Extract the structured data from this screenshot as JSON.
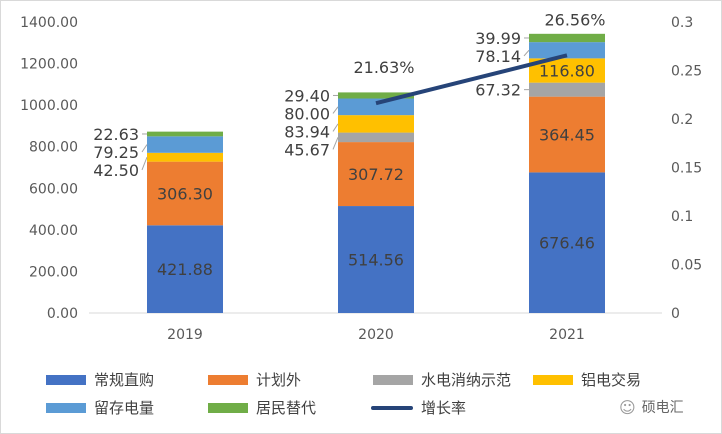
{
  "chart_data": {
    "type": "bar",
    "stacked": true,
    "categories": [
      "2019",
      "2020",
      "2021"
    ],
    "series": [
      {
        "name": "常规直购",
        "color": "#4472C4",
        "values": [
          421.88,
          514.56,
          676.46
        ]
      },
      {
        "name": "计划外",
        "color": "#ED7D31",
        "values": [
          306.3,
          307.72,
          364.45
        ]
      },
      {
        "name": "水电消纳示范",
        "color": "#A5A5A5",
        "values": [
          null,
          45.67,
          67.32
        ]
      },
      {
        "name": "铝电交易",
        "color": "#FFC000",
        "values": [
          42.5,
          83.94,
          116.8
        ]
      },
      {
        "name": "留存电量",
        "color": "#5B9BD5",
        "values": [
          79.25,
          80.0,
          78.14
        ]
      },
      {
        "name": "居民替代",
        "color": "#70AD47",
        "values": [
          22.63,
          29.4,
          39.99
        ]
      }
    ],
    "line_series": {
      "name": "增长率",
      "color": "#264478",
      "axis": "secondary",
      "values": [
        null,
        0.2163,
        0.2656
      ],
      "labels": [
        null,
        "21.63%",
        "26.56%"
      ]
    },
    "ylim": [
      0,
      1400
    ],
    "yticks": [
      "0.00",
      "200.00",
      "400.00",
      "600.00",
      "800.00",
      "1000.00",
      "1200.00",
      "1400.00"
    ],
    "y2lim": [
      0,
      0.3
    ],
    "y2ticks": [
      "0",
      "0.05",
      "0.1",
      "0.15",
      "0.2",
      "0.25",
      "0.3"
    ],
    "grid": false,
    "legend": "bottom"
  },
  "watermark": "硕电汇"
}
